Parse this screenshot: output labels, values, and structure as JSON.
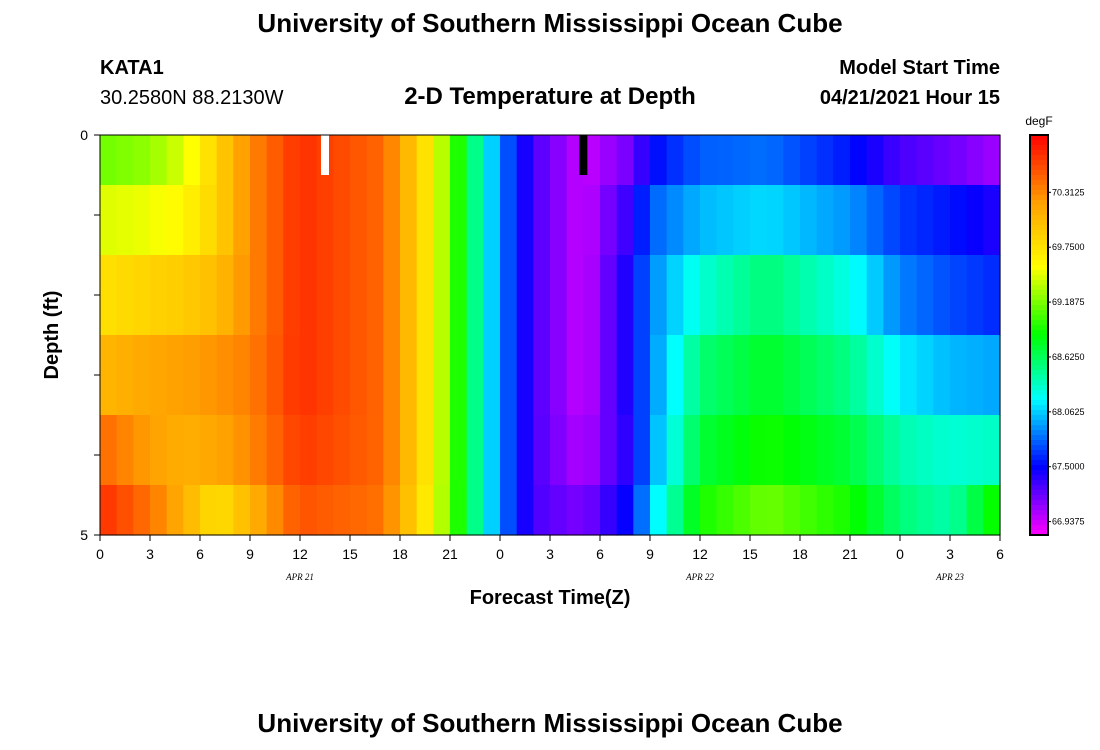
{
  "header": {
    "title": "University of Southern Mississippi Ocean Cube",
    "station": "KATA1",
    "coords": "30.2580N  88.2130W",
    "subtitle": "2-D Temperature at Depth",
    "model_start_label": "Model Start Time",
    "model_start_value": "04/21/2021 Hour 15"
  },
  "footer": {
    "title": "University of Southern Mississippi Ocean Cube"
  },
  "chart_data": {
    "type": "heatmap",
    "title": "2-D Temperature at Depth",
    "xlabel": "Forecast Time(Z)",
    "ylabel": "Depth (ft)",
    "x_range_hours": [
      0,
      54
    ],
    "y_range": [
      0,
      5
    ],
    "y_ticks": [
      "0",
      "5"
    ],
    "x_tick_labels": [
      "0",
      "3",
      "6",
      "9",
      "12",
      "15",
      "18",
      "21",
      "0",
      "3",
      "6",
      "9",
      "12",
      "15",
      "18",
      "21",
      "0",
      "3",
      "6"
    ],
    "date_labels": [
      {
        "label": "APR 21",
        "hour": 12
      },
      {
        "label": "APR 22",
        "hour": 36
      },
      {
        "label": "APR 23",
        "hour": 51
      }
    ],
    "colorbar": {
      "unit": "degF",
      "min": 66.8,
      "max": 70.9,
      "tick_labels": [
        "70.3125",
        "69.7500",
        "69.1875",
        "68.6250",
        "68.0625",
        "67.5000",
        "66.9375"
      ],
      "tick_values": [
        70.3125,
        69.75,
        69.1875,
        68.625,
        68.0625,
        67.5,
        66.9375
      ]
    },
    "depth_layers": [
      0.25,
      1.0,
      2.0,
      3.0,
      4.0,
      4.75
    ],
    "temperature_keyframes": [
      {
        "hour": 0,
        "values": [
          69.15,
          69.45,
          69.75,
          70.05,
          70.45,
          70.7
        ]
      },
      {
        "hour": 3,
        "values": [
          69.25,
          69.5,
          69.85,
          70.15,
          70.2,
          70.4
        ]
      },
      {
        "hour": 5,
        "values": [
          69.45,
          69.6,
          69.9,
          70.2,
          70.1,
          70.1
        ]
      },
      {
        "hour": 7,
        "values": [
          69.85,
          69.85,
          70.0,
          70.25,
          70.15,
          69.75
        ]
      },
      {
        "hour": 9,
        "values": [
          70.3,
          70.3,
          70.3,
          70.35,
          70.3,
          70.05
        ]
      },
      {
        "hour": 12,
        "values": [
          70.7,
          70.7,
          70.7,
          70.7,
          70.65,
          70.55
        ]
      },
      {
        "hour": 17,
        "values": [
          70.45,
          70.45,
          70.45,
          70.45,
          70.45,
          70.4
        ]
      },
      {
        "hour": 19.5,
        "values": [
          69.75,
          69.75,
          69.75,
          69.75,
          69.75,
          69.7
        ]
      },
      {
        "hour": 21,
        "values": [
          69.15,
          69.15,
          69.15,
          69.15,
          69.15,
          69.15
        ]
      },
      {
        "hour": 22.5,
        "values": [
          68.5,
          68.5,
          68.5,
          68.5,
          68.5,
          68.5
        ]
      },
      {
        "hour": 24,
        "values": [
          67.85,
          67.85,
          67.85,
          67.85,
          67.85,
          67.85
        ]
      },
      {
        "hour": 26,
        "values": [
          67.3,
          67.3,
          67.3,
          67.3,
          67.3,
          67.3
        ]
      },
      {
        "hour": 29,
        "values": [
          66.95,
          66.95,
          66.95,
          66.95,
          67.0,
          67.15
        ]
      },
      {
        "hour": 32,
        "values": [
          67.2,
          67.4,
          67.5,
          67.5,
          67.45,
          67.55
        ]
      },
      {
        "hour": 33,
        "values": [
          67.5,
          67.75,
          67.85,
          67.85,
          67.9,
          68.05
        ]
      },
      {
        "hour": 36,
        "values": [
          67.75,
          68.0,
          68.3,
          68.55,
          68.7,
          68.9
        ]
      },
      {
        "hour": 40,
        "values": [
          67.8,
          68.1,
          68.55,
          68.75,
          68.9,
          69.15
        ]
      },
      {
        "hour": 45,
        "values": [
          67.55,
          67.9,
          68.25,
          68.5,
          68.7,
          68.9
        ]
      },
      {
        "hour": 48,
        "values": [
          67.3,
          67.65,
          67.85,
          68.15,
          68.4,
          68.55
        ]
      },
      {
        "hour": 51,
        "values": [
          67.2,
          67.55,
          67.7,
          68.0,
          68.3,
          68.4
        ]
      },
      {
        "hour": 54,
        "values": [
          67.05,
          67.4,
          67.6,
          67.95,
          68.35,
          68.95
        ]
      }
    ],
    "markers": [
      {
        "hour": 13.5,
        "color": "#ffffff"
      },
      {
        "hour": 29,
        "color": "#000000"
      }
    ]
  }
}
